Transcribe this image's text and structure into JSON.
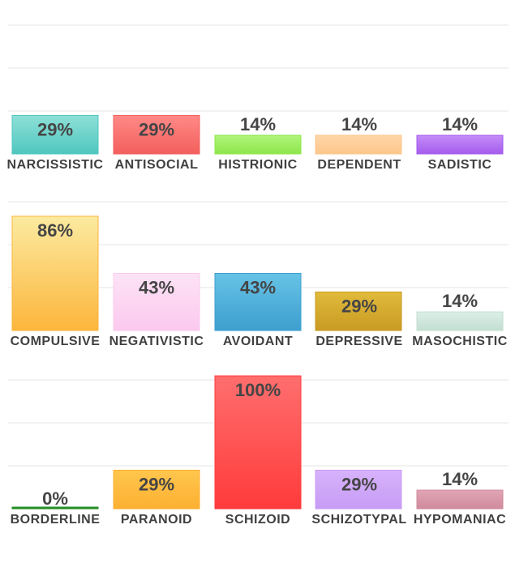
{
  "chart_data": [
    {
      "type": "bar",
      "categories": [
        "NARCISSISTIC",
        "ANTISOCIAL",
        "HISTRIONIC",
        "DEPENDENT",
        "SADISTIC"
      ],
      "values": [
        29,
        29,
        14,
        14,
        14
      ],
      "value_labels": [
        "29%",
        "29%",
        "14%",
        "14%",
        "14%"
      ],
      "colors": [
        [
          "#8ee0d8",
          "#4fc7be"
        ],
        [
          "#ff8a88",
          "#f35f5c"
        ],
        [
          "#b0f57a",
          "#8ee64c"
        ],
        [
          "#ffd6a8",
          "#fdc68c"
        ],
        [
          "#c58cf7",
          "#a45ced"
        ]
      ],
      "ylim": [
        0,
        100
      ],
      "grid": true
    },
    {
      "type": "bar",
      "categories": [
        "COMPULSIVE",
        "NEGATIVISTIC",
        "AVOIDANT",
        "DEPRESSIVE",
        "MASOCHISTIC"
      ],
      "values": [
        86,
        43,
        43,
        29,
        14
      ],
      "value_labels": [
        "86%",
        "43%",
        "43%",
        "29%",
        "14%"
      ],
      "colors": [
        [
          "#fbeaa0",
          "#fdb63c"
        ],
        [
          "#fde3f6",
          "#fbc9ee"
        ],
        [
          "#67c3e6",
          "#3d9fcf"
        ],
        [
          "#e0bb3c",
          "#c99a22"
        ],
        [
          "#dcefe6",
          "#c3ded2"
        ]
      ],
      "ylim": [
        0,
        100
      ],
      "grid": true
    },
    {
      "type": "bar",
      "categories": [
        "BORDERLINE",
        "PARANOID",
        "SCHIZOID",
        "SCHIZOTYPAL",
        "HYPOMANIAC"
      ],
      "values": [
        0,
        29,
        100,
        29,
        14
      ],
      "value_labels": [
        "0%",
        "29%",
        "100%",
        "29%",
        "14%"
      ],
      "colors": [
        [
          "#2e9e2e",
          "#1f8a1f"
        ],
        [
          "#ffc64e",
          "#fdb031"
        ],
        [
          "#ff6e6e",
          "#ff3b3b"
        ],
        [
          "#d7b2fb",
          "#c79cf5"
        ],
        [
          "#e1a5b6",
          "#cf8b9d"
        ]
      ],
      "ylim": [
        0,
        100
      ],
      "grid": true
    }
  ]
}
